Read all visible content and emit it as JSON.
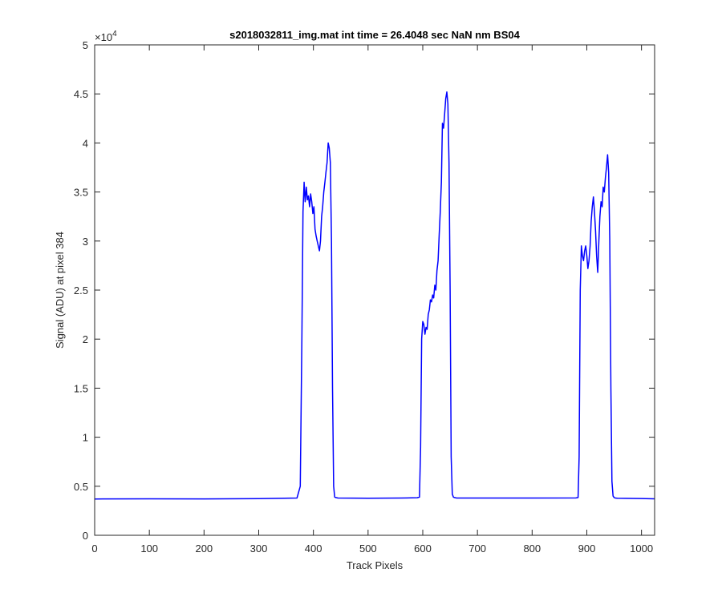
{
  "chart_data": {
    "type": "line",
    "title": "s2018032811_img.mat int time = 26.4048 sec  NaN nm BS04",
    "xlabel": "Track Pixels",
    "ylabel": "Signal (ADU) at pixel 384",
    "xlim": [
      0,
      1024
    ],
    "ylim": [
      0,
      50000
    ],
    "y_exponent_label": "×10",
    "y_exponent_power": "4",
    "x_ticks": [
      0,
      100,
      200,
      300,
      400,
      500,
      600,
      700,
      800,
      900,
      1000
    ],
    "x_tick_labels": [
      "0",
      "100",
      "200",
      "300",
      "400",
      "500",
      "600",
      "700",
      "800",
      "900",
      "1000"
    ],
    "y_ticks": [
      0,
      5000,
      10000,
      15000,
      20000,
      25000,
      30000,
      35000,
      40000,
      45000,
      50000
    ],
    "y_tick_labels": [
      "0",
      "0.5",
      "1",
      "1.5",
      "2",
      "2.5",
      "3",
      "3.5",
      "4",
      "4.5",
      "5"
    ],
    "grid": false,
    "line_color": "#0000ff",
    "series": [
      {
        "x": [
          0,
          100,
          200,
          300,
          370,
          376,
          379,
          381,
          383,
          385,
          387,
          389,
          391,
          393,
          395,
          397,
          399,
          401,
          403,
          405,
          407,
          409,
          411,
          413,
          415,
          417,
          419,
          421,
          423,
          425,
          427,
          429,
          431,
          433,
          435,
          437,
          439,
          441,
          445,
          500,
          560,
          590,
          594,
          596,
          598,
          600,
          602,
          604,
          606,
          608,
          610,
          612,
          614,
          616,
          618,
          620,
          622,
          624,
          626,
          628,
          630,
          632,
          634,
          636,
          638,
          640,
          642,
          644,
          646,
          648,
          650,
          652,
          654,
          656,
          658,
          662,
          700,
          800,
          880,
          884,
          886,
          888,
          890,
          892,
          894,
          896,
          898,
          900,
          902,
          904,
          906,
          908,
          910,
          912,
          914,
          916,
          918,
          920,
          922,
          924,
          926,
          928,
          930,
          932,
          934,
          936,
          938,
          940,
          942,
          944,
          946,
          948,
          950,
          952,
          956,
          1000,
          1024
        ],
        "y": [
          3700,
          3720,
          3710,
          3730,
          3800,
          5000,
          20000,
          33000,
          36000,
          34000,
          35500,
          34200,
          34600,
          33500,
          34800,
          34000,
          32800,
          33500,
          31200,
          30500,
          30000,
          29500,
          29000,
          30000,
          32500,
          33500,
          35000,
          36000,
          37000,
          38000,
          40000,
          39500,
          38000,
          30000,
          15000,
          5000,
          3900,
          3850,
          3800,
          3780,
          3800,
          3830,
          3900,
          9000,
          20000,
          21800,
          21500,
          20500,
          21200,
          21000,
          22500,
          23000,
          24000,
          23800,
          24500,
          24200,
          25500,
          25000,
          27000,
          28000,
          30500,
          33000,
          36000,
          42000,
          41500,
          43000,
          44500,
          45200,
          44000,
          38000,
          25000,
          8000,
          4200,
          3900,
          3850,
          3800,
          3800,
          3800,
          3810,
          3850,
          8000,
          25000,
          29500,
          28500,
          28000,
          29000,
          29500,
          28500,
          27200,
          28000,
          29500,
          32000,
          33500,
          34500,
          33000,
          31000,
          28500,
          26800,
          30000,
          32500,
          34000,
          33500,
          35500,
          35000,
          36500,
          37500,
          38800,
          37000,
          30000,
          15000,
          5500,
          4000,
          3850,
          3800,
          3780,
          3750,
          3720
        ]
      }
    ]
  }
}
